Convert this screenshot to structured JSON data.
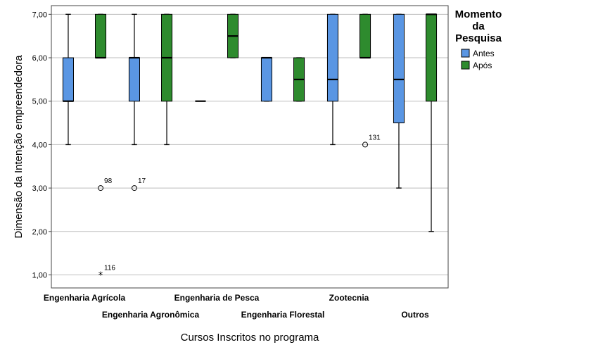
{
  "chart_data": {
    "type": "boxplot",
    "xlabel": "Cursos Inscritos no programa",
    "ylabel": "Dimensão da Intenção empreendedora",
    "ylim": [
      0.7,
      7.2
    ],
    "yticks": [
      "1,00",
      "2,00",
      "3,00",
      "4,00",
      "5,00",
      "6,00",
      "7,00"
    ],
    "grid": true,
    "legend": {
      "title_lines": [
        "Momento",
        "da",
        "Pesquisa"
      ],
      "position": "right"
    },
    "categories": [
      "Engenharia Agrícola",
      "Engenharia Agronômica",
      "Engenharia de Pesca",
      "Engenharia Florestal",
      "Zootecnia",
      "Outros"
    ],
    "series": [
      {
        "name": "Antes",
        "color": "#5a96e3",
        "boxes": [
          {
            "min": 4,
            "q1": 5,
            "median": 5,
            "q3": 6,
            "max": 7
          },
          {
            "min": 4,
            "q1": 5,
            "median": 6,
            "q3": 6,
            "max": 7
          },
          {
            "min": 5,
            "q1": 5,
            "median": 5,
            "q3": 5,
            "max": 5
          },
          {
            "min": 5,
            "q1": 5,
            "median": 6,
            "q3": 6,
            "max": 6
          },
          {
            "min": 4,
            "q1": 5,
            "median": 5.5,
            "q3": 7,
            "max": 7
          },
          {
            "min": 3,
            "q1": 4.5,
            "median": 5.5,
            "q3": 7,
            "max": 7
          }
        ]
      },
      {
        "name": "Após",
        "color": "#2e8b2e",
        "boxes": [
          {
            "min": 6,
            "q1": 6,
            "median": 6,
            "q3": 7,
            "max": 7
          },
          {
            "min": 4,
            "q1": 5,
            "median": 6,
            "q3": 7,
            "max": 7
          },
          {
            "min": 6,
            "q1": 6,
            "median": 6.5,
            "q3": 7,
            "max": 7
          },
          {
            "min": 5,
            "q1": 5,
            "median": 5.5,
            "q3": 6,
            "max": 6
          },
          {
            "min": 6,
            "q1": 6,
            "median": 6,
            "q3": 7,
            "max": 7
          },
          {
            "min": 2,
            "q1": 5,
            "median": 7,
            "q3": 7,
            "max": 7
          }
        ]
      }
    ],
    "outliers": [
      {
        "category": 0,
        "series": 1,
        "value": 3,
        "label": "98",
        "marker": "circle"
      },
      {
        "category": 0,
        "series": 1,
        "value": 1,
        "label": "116",
        "marker": "star"
      },
      {
        "category": 1,
        "series": 0,
        "value": 3,
        "label": "17",
        "marker": "circle"
      },
      {
        "category": 4,
        "series": 1,
        "value": 4,
        "label": "131",
        "marker": "circle"
      }
    ]
  }
}
